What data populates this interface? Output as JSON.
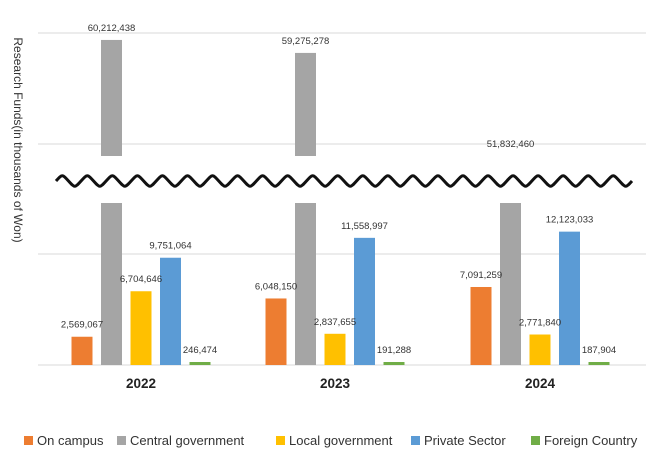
{
  "chart_data": {
    "type": "bar",
    "ylabel": "Research Funds(in thousands of Won)",
    "categories": [
      "2022",
      "2023",
      "2024"
    ],
    "axis_break": true,
    "series": [
      {
        "name": "On campus",
        "color": "#ED7D31",
        "values": [
          2569067,
          6048150,
          7091259
        ],
        "labels": [
          "2,569,067",
          "6,048,150",
          "7,091,259"
        ]
      },
      {
        "name": "Central government",
        "color": "#A5A5A5",
        "values": [
          60212438,
          59275278,
          51832460
        ],
        "labels": [
          "60,212,438",
          "59,275,278",
          "51,832,460"
        ]
      },
      {
        "name": "Local government",
        "color": "#FFC000",
        "values": [
          6704646,
          2837655,
          2771840
        ],
        "labels": [
          "6,704,646",
          "2,837,655",
          "2,771,840"
        ]
      },
      {
        "name": "Private Sector",
        "color": "#5B9BD5",
        "values": [
          9751064,
          11558997,
          12123033
        ],
        "labels": [
          "9,751,064",
          "11,558,997",
          "12,123,033"
        ]
      },
      {
        "name": "Foreign Country",
        "color": "#70AD47",
        "values": [
          246474,
          191288,
          187904
        ],
        "labels": [
          "246,474",
          "191,288",
          "187,904"
        ]
      }
    ]
  }
}
